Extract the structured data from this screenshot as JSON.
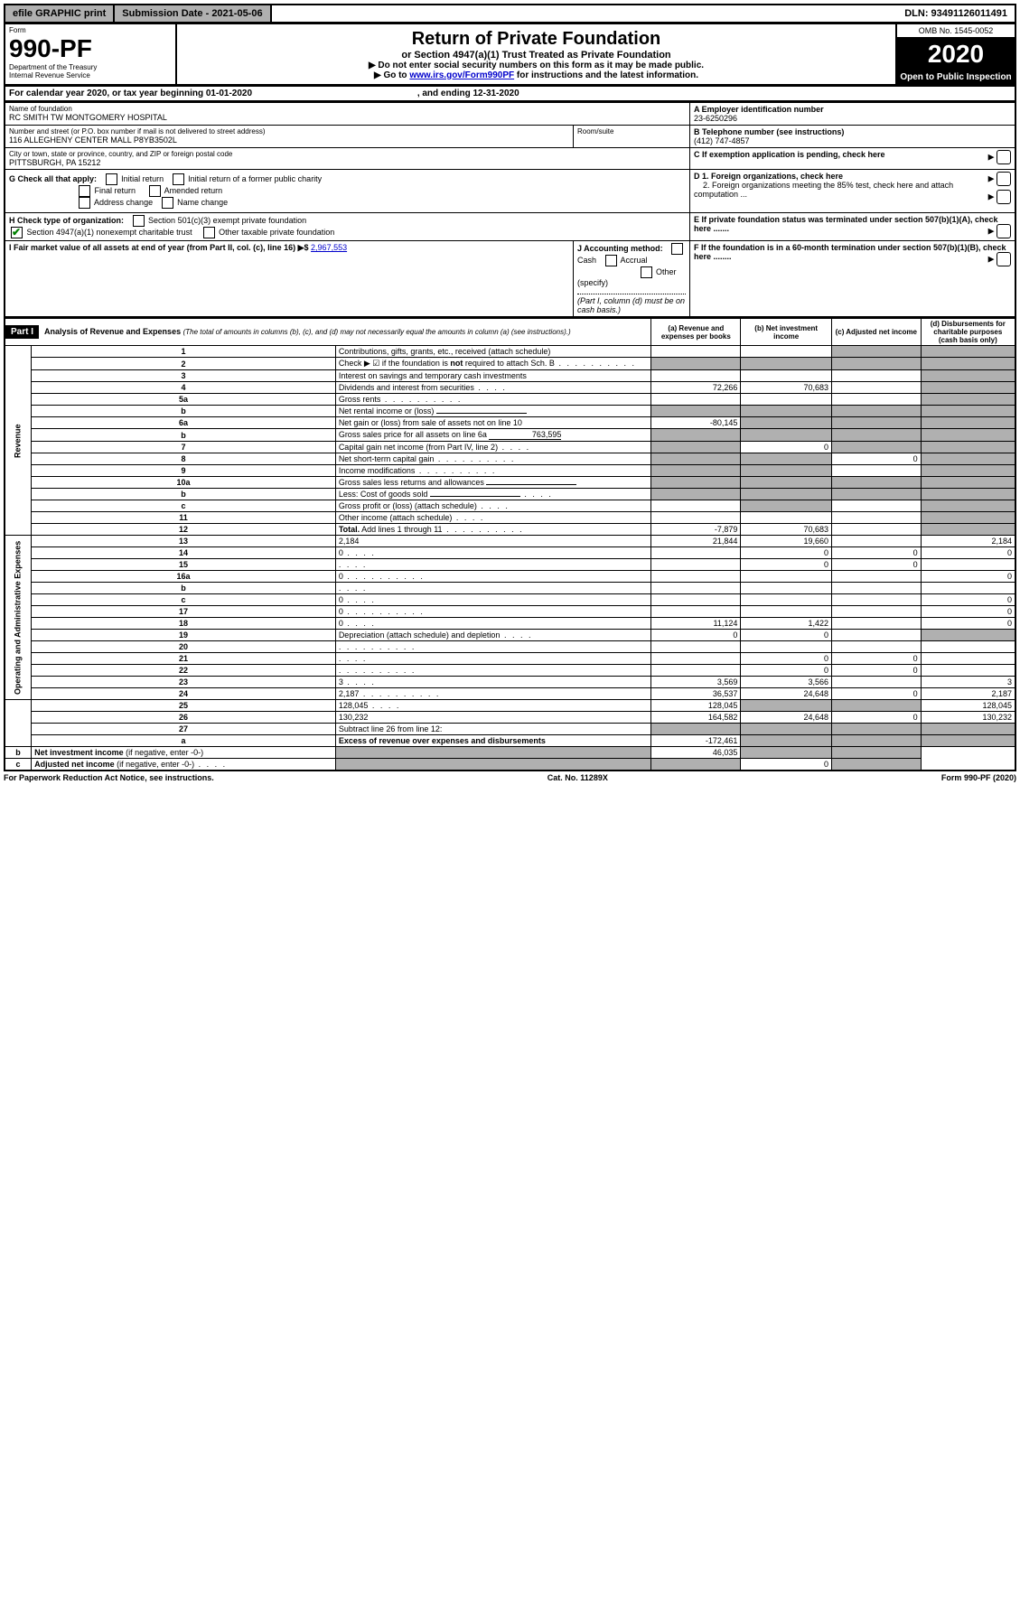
{
  "topbar": {
    "efile": "efile GRAPHIC print",
    "submission": "Submission Date - 2021-05-06",
    "dln": "DLN: 93491126011491"
  },
  "header": {
    "form_label": "Form",
    "form_number": "990-PF",
    "dept": "Department of the Treasury",
    "irs": "Internal Revenue Service",
    "title": "Return of Private Foundation",
    "subtitle": "or Section 4947(a)(1) Trust Treated as Private Foundation",
    "note1": "▶ Do not enter social security numbers on this form as it may be made public.",
    "note2_pre": "▶ Go to ",
    "note2_link": "www.irs.gov/Form990PF",
    "note2_post": " for instructions and the latest information.",
    "omb": "OMB No. 1545-0052",
    "year": "2020",
    "open": "Open to Public Inspection"
  },
  "calendar": {
    "text_pre": "For calendar year 2020, or tax year beginning ",
    "begin": "01-01-2020",
    "mid": " , and ending ",
    "end": "12-31-2020"
  },
  "identity": {
    "name_label": "Name of foundation",
    "name": "RC SMITH TW MONTGOMERY HOSPITAL",
    "addr_label": "Number and street (or P.O. box number if mail is not delivered to street address)",
    "room_label": "Room/suite",
    "addr": "116 ALLEGHENY CENTER MALL P8YB3502L",
    "city_label": "City or town, state or province, country, and ZIP or foreign postal code",
    "city": "PITTSBURGH, PA  15212",
    "a_label": "A Employer identification number",
    "a_val": "23-6250296",
    "b_label": "B Telephone number (see instructions)",
    "b_val": "(412) 747-4857",
    "c_label": "C If exemption application is pending, check here",
    "d1_label": "D 1. Foreign organizations, check here",
    "d2_label": "2. Foreign organizations meeting the 85% test, check here and attach computation ...",
    "e_label": "E  If private foundation status was terminated under section 507(b)(1)(A), check here .......",
    "f_label": "F  If the foundation is in a 60-month termination under section 507(b)(1)(B), check here ........"
  },
  "checks": {
    "g_label": "G Check all that apply:",
    "initial": "Initial return",
    "initial_former": "Initial return of a former public charity",
    "final": "Final return",
    "amended": "Amended return",
    "address": "Address change",
    "name_change": "Name change",
    "h_label": "H Check type of organization:",
    "h1": "Section 501(c)(3) exempt private foundation",
    "h2": "Section 4947(a)(1) nonexempt charitable trust",
    "h3": "Other taxable private foundation",
    "i_label": "I Fair market value of all assets at end of year (from Part II, col. (c), line 16) ▶$ ",
    "i_val": "2,967,553",
    "j_label": "J Accounting method:",
    "j_cash": "Cash",
    "j_accrual": "Accrual",
    "j_other": "Other (specify)",
    "j_note": "(Part I, column (d) must be on cash basis.)"
  },
  "part1": {
    "label": "Part I",
    "title": "Analysis of Revenue and Expenses",
    "title_note": "(The total of amounts in columns (b), (c), and (d) may not necessarily equal the amounts in column (a) (see instructions).)",
    "col_a": "(a)   Revenue and expenses per books",
    "col_b": "(b)  Net investment income",
    "col_c": "(c)  Adjusted net income",
    "col_d": "(d)  Disbursements for charitable purposes (cash basis only)",
    "revenue_label": "Revenue",
    "expenses_label": "Operating and Administrative Expenses"
  },
  "rows": [
    {
      "n": "1",
      "d": "Contributions, gifts, grants, etc., received (attach schedule)",
      "a": "",
      "b": "",
      "c_sh": true,
      "d_sh": true
    },
    {
      "n": "2",
      "d": "Check ▶ ☑ if the foundation is <b>not</b> required to attach Sch. B",
      "a_sh": true,
      "b_sh": true,
      "c_sh": true,
      "d_sh": true,
      "dots": true
    },
    {
      "n": "3",
      "d": "Interest on savings and temporary cash investments",
      "a": "",
      "b": "",
      "c": "",
      "d_sh": true
    },
    {
      "n": "4",
      "d": "Dividends and interest from securities",
      "a": "72,266",
      "b": "70,683",
      "c": "",
      "d_sh": true,
      "dots_short": true
    },
    {
      "n": "5a",
      "d": "Gross rents",
      "a": "",
      "b": "",
      "c": "",
      "d_sh": true,
      "dots": true
    },
    {
      "n": "b",
      "d": "Net rental income or (loss)",
      "a_sh": true,
      "b_sh": true,
      "c_sh": true,
      "d_sh": true,
      "underline": true
    },
    {
      "n": "6a",
      "d": "Net gain or (loss) from sale of assets not on line 10",
      "a": "-80,145",
      "b_sh": true,
      "c_sh": true,
      "d_sh": true
    },
    {
      "n": "b",
      "d": "Gross sales price for all assets on line 6a",
      "inline_val": "763,595",
      "a_sh": true,
      "b_sh": true,
      "c_sh": true,
      "d_sh": true
    },
    {
      "n": "7",
      "d": "Capital gain net income (from Part IV, line 2)",
      "a_sh": true,
      "b": "0",
      "c_sh": true,
      "d_sh": true,
      "dots_short": true
    },
    {
      "n": "8",
      "d": "Net short-term capital gain",
      "a_sh": true,
      "b_sh": true,
      "c": "0",
      "d_sh": true,
      "dots": true
    },
    {
      "n": "9",
      "d": "Income modifications",
      "a_sh": true,
      "b_sh": true,
      "c": "",
      "d_sh": true,
      "dots": true
    },
    {
      "n": "10a",
      "d": "Gross sales less returns and allowances",
      "a_sh": true,
      "b_sh": true,
      "c_sh": true,
      "d_sh": true,
      "underline": true
    },
    {
      "n": "b",
      "d": "Less: Cost of goods sold",
      "a_sh": true,
      "b_sh": true,
      "c_sh": true,
      "d_sh": true,
      "underline": true,
      "dots_short": true
    },
    {
      "n": "c",
      "d": "Gross profit or (loss) (attach schedule)",
      "a": "",
      "b_sh": true,
      "c": "",
      "d_sh": true,
      "dots_short": true
    },
    {
      "n": "11",
      "d": "Other income (attach schedule)",
      "a": "",
      "b": "",
      "c": "",
      "d_sh": true,
      "dots_short": true
    },
    {
      "n": "12",
      "d": "<b>Total.</b> Add lines 1 through 11",
      "a": "-7,879",
      "b": "70,683",
      "c": "",
      "d_sh": true,
      "dots": true
    },
    {
      "n": "13",
      "d": "2,184",
      "a": "21,844",
      "b": "19,660",
      "c": ""
    },
    {
      "n": "14",
      "d": "0",
      "a": "",
      "b": "0",
      "c": "0",
      "dots_short": true
    },
    {
      "n": "15",
      "d": "",
      "a": "",
      "b": "0",
      "c": "0",
      "dots_short": true
    },
    {
      "n": "16a",
      "d": "0",
      "a": "",
      "b": "",
      "c": "",
      "dots": true
    },
    {
      "n": "b",
      "d": "",
      "a": "",
      "b": "",
      "c": "",
      "dots_short": true
    },
    {
      "n": "c",
      "d": "0",
      "a": "",
      "b": "",
      "c": "",
      "dots_short": true
    },
    {
      "n": "17",
      "d": "0",
      "a": "",
      "b": "",
      "c": "",
      "dots": true
    },
    {
      "n": "18",
      "d": "0",
      "a": "11,124",
      "b": "1,422",
      "c": "",
      "dots_short": true
    },
    {
      "n": "19",
      "d": "Depreciation (attach schedule) and depletion",
      "a": "0",
      "b": "0",
      "c": "",
      "d_sh": true,
      "dots_short": true
    },
    {
      "n": "20",
      "d": "",
      "a": "",
      "b": "",
      "c": "",
      "dots": true
    },
    {
      "n": "21",
      "d": "",
      "a": "",
      "b": "0",
      "c": "0",
      "dots_short": true
    },
    {
      "n": "22",
      "d": "",
      "a": "",
      "b": "0",
      "c": "0",
      "dots": true
    },
    {
      "n": "23",
      "d": "3",
      "a": "3,569",
      "b": "3,566",
      "c": "",
      "dots_short": true
    },
    {
      "n": "24",
      "d": "2,187",
      "a": "36,537",
      "b": "24,648",
      "c": "0",
      "dots": true
    },
    {
      "n": "25",
      "d": "128,045",
      "a": "128,045",
      "b_sh": true,
      "c_sh": true,
      "dots_short": true
    },
    {
      "n": "26",
      "d": "130,232",
      "a": "164,582",
      "b": "24,648",
      "c": "0"
    },
    {
      "n": "27",
      "d": "Subtract line 26 from line 12:",
      "a_sh": true,
      "b_sh": true,
      "c_sh": true,
      "d_sh": true
    },
    {
      "n": "a",
      "d": "<b>Excess of revenue over expenses and disbursements</b>",
      "a": "-172,461",
      "b_sh": true,
      "c_sh": true,
      "d_sh": true
    },
    {
      "n": "b",
      "d": "<b>Net investment income</b> (if negative, enter -0-)",
      "a_sh": true,
      "b": "46,035",
      "c_sh": true,
      "d_sh": true
    },
    {
      "n": "c",
      "d": "<b>Adjusted net income</b> (if negative, enter -0-)",
      "a_sh": true,
      "b_sh": true,
      "c": "0",
      "d_sh": true,
      "dots_short": true
    }
  ],
  "footer": {
    "left": "For Paperwork Reduction Act Notice, see instructions.",
    "mid": "Cat. No. 11289X",
    "right": "Form 990-PF (2020)"
  }
}
